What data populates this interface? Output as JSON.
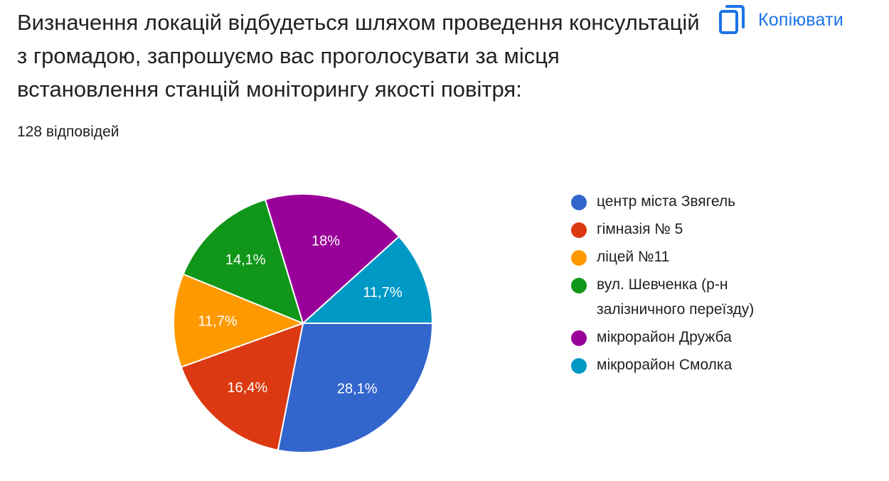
{
  "header": {
    "question": "Визначення локацій відбудеться шляхом проведення консультацій з громадою, запрошуємо вас проголосувати за місця встановлення станцій моніторингу якості повітря:",
    "response_count": "128 відповідей",
    "copy_label": "Копіювати",
    "copy_icon": "copy-icon"
  },
  "colors": {
    "accent": "#1a73e8",
    "text": "#202124"
  },
  "chart_data": {
    "type": "pie",
    "start_angle_deg": 90,
    "direction": "clockwise",
    "legend_position": "right",
    "slices": [
      {
        "label": "центр міста Звягель",
        "value": 28.1,
        "display": "28,1%",
        "color": "#3366cc"
      },
      {
        "label": "гімназія № 5",
        "value": 16.4,
        "display": "16,4%",
        "color": "#dc3912"
      },
      {
        "label": "ліцей №11",
        "value": 11.7,
        "display": "11,7%",
        "color": "#ff9900"
      },
      {
        "label": "вул. Шевченка (р-н залізничного переїзду)",
        "value": 14.1,
        "display": "14,1%",
        "color": "#109618"
      },
      {
        "label": "мікрорайон Дружба",
        "value": 18.0,
        "display": "18%",
        "color": "#990099"
      },
      {
        "label": "мікрорайон Смолка",
        "value": 11.7,
        "display": "11,7%",
        "color": "#0099c6"
      }
    ]
  }
}
